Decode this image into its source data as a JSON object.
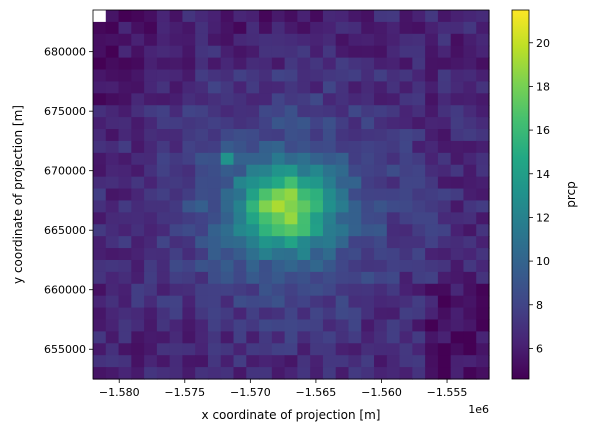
{
  "chart_data": {
    "type": "heatmap",
    "title": "",
    "xlabel": "x coordinate of projection [m]",
    "ylabel": "y coordinate of projection [m]",
    "x_offset_label": "1e6",
    "x_range": [
      -1.582,
      -1.5518
    ],
    "y_range": [
      652500,
      683500
    ],
    "x_ticks": [
      {
        "value": -1.58,
        "label": "−1.580"
      },
      {
        "value": -1.575,
        "label": "−1.575"
      },
      {
        "value": -1.57,
        "label": "−1.570"
      },
      {
        "value": -1.565,
        "label": "−1.565"
      },
      {
        "value": -1.56,
        "label": "−1.560"
      },
      {
        "value": -1.555,
        "label": "−1.555"
      }
    ],
    "y_ticks": [
      {
        "value": 655000,
        "label": "655000"
      },
      {
        "value": 660000,
        "label": "660000"
      },
      {
        "value": 665000,
        "label": "665000"
      },
      {
        "value": 670000,
        "label": "670000"
      },
      {
        "value": 675000,
        "label": "675000"
      },
      {
        "value": 680000,
        "label": "680000"
      }
    ],
    "colorbar": {
      "label": "prcp",
      "min": 4.6,
      "max": 21.5,
      "ticks": [
        {
          "value": 6,
          "label": "6"
        },
        {
          "value": 8,
          "label": "8"
        },
        {
          "value": 10,
          "label": "10"
        },
        {
          "value": 12,
          "label": "12"
        },
        {
          "value": 14,
          "label": "14"
        },
        {
          "value": 16,
          "label": "16"
        },
        {
          "value": 18,
          "label": "18"
        },
        {
          "value": 20,
          "label": "20"
        }
      ]
    },
    "grid_size": [
      31,
      31
    ],
    "field": {
      "peak_value": 21.5,
      "peak_x": -1.5673,
      "peak_y": 666800,
      "missing_cell": {
        "x": -1.5815,
        "y": 683000
      }
    },
    "grid": false,
    "legend": "none",
    "colormap": "viridis"
  }
}
